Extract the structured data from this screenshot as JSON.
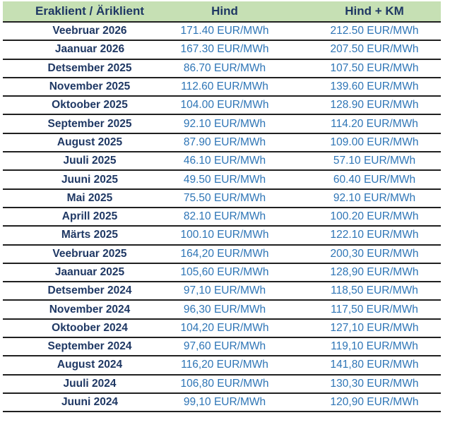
{
  "colors": {
    "header_bg": "#c6e0b4",
    "header_text": "#1f3864",
    "period_text": "#1f3864",
    "value_text": "#2e75b6",
    "border": "#202020"
  },
  "chart_data": {
    "type": "table",
    "columns": [
      "Eraklient / Äriklient",
      "Hind",
      "Hind + KM"
    ],
    "rows": [
      [
        "Veebruar 2026",
        "171.40 EUR/MWh",
        "212.50 EUR/MWh"
      ],
      [
        "Jaanuar 2026",
        "167.30 EUR/MWh",
        "207.50 EUR/MWh"
      ],
      [
        "Detsember 2025",
        "86.70 EUR/MWh",
        "107.50 EUR/MWh"
      ],
      [
        "November 2025",
        "112.60 EUR/MWh",
        "139.60 EUR/MWh"
      ],
      [
        "Oktoober 2025",
        "104.00 EUR/MWh",
        "128.90 EUR/MWh"
      ],
      [
        "September 2025",
        "92.10 EUR/MWh",
        "114.20 EUR/MWh"
      ],
      [
        "August 2025",
        "87.90 EUR/MWh",
        "109.00 EUR/MWh"
      ],
      [
        "Juuli 2025",
        "46.10 EUR/MWh",
        "57.10 EUR/MWh"
      ],
      [
        "Juuni 2025",
        "49.50 EUR/MWh",
        "60.40 EUR/MWh"
      ],
      [
        "Mai 2025",
        "75.50 EUR/MWh",
        "92.10 EUR/MWh"
      ],
      [
        "Aprill 2025",
        "82.10 EUR/MWh",
        "100.20 EUR/MWh"
      ],
      [
        "Märts 2025",
        "100.10 EUR/MWh",
        "122.10 EUR/MWh"
      ],
      [
        "Veebruar 2025",
        "164,20 EUR/MWh",
        "200,30 EUR/MWh"
      ],
      [
        "Jaanuar 2025",
        "105,60 EUR/MWh",
        "128,90 EUR/MWh"
      ],
      [
        "Detsember 2024",
        "97,10 EUR/MWh",
        "118,50 EUR/MWh"
      ],
      [
        "November 2024",
        "96,30 EUR/MWh",
        "117,50 EUR/MWh"
      ],
      [
        "Oktoober 2024",
        "104,20 EUR/MWh",
        "127,10 EUR/MWh"
      ],
      [
        "September 2024",
        "97,60 EUR/MWh",
        "119,10 EUR/MWh"
      ],
      [
        "August 2024",
        "116,20 EUR/MWh",
        "141,80 EUR/MWh"
      ],
      [
        "Juuli 2024",
        "106,80 EUR/MWh",
        "130,30 EUR/MWh"
      ],
      [
        "Juuni 2024",
        "99,10 EUR/MWh",
        "120,90 EUR/MWh"
      ]
    ]
  }
}
